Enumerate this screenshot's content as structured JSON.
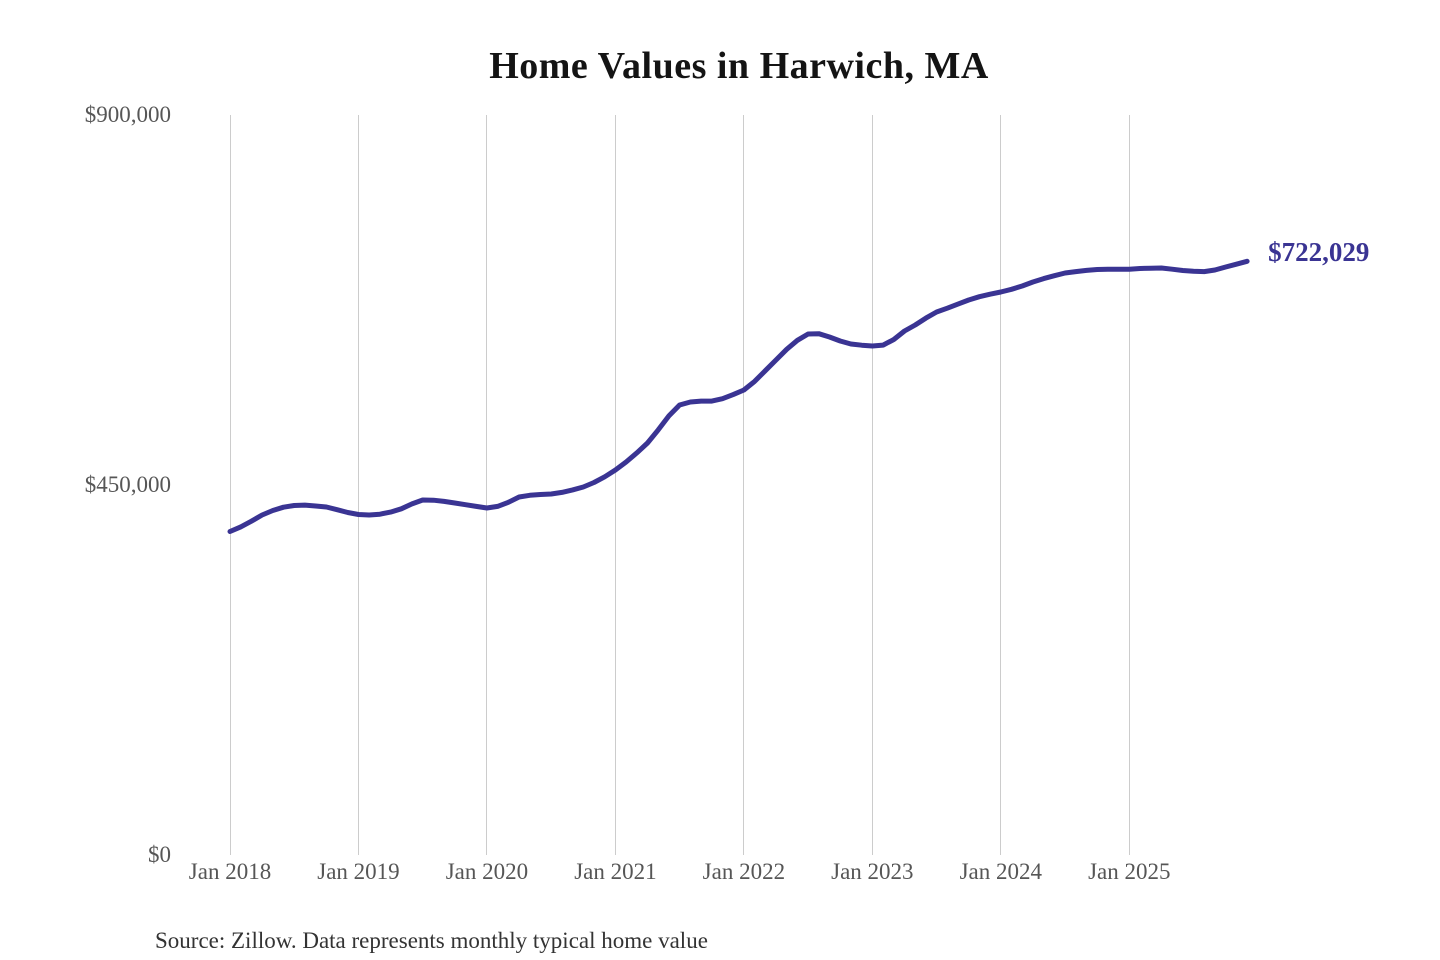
{
  "header": {
    "title": "Home Values in Harwich, MA"
  },
  "footer": {
    "source_note": "Source: Zillow. Data represents monthly typical home value"
  },
  "chart_data": {
    "type": "line",
    "title": "Home Values in Harwich, MA",
    "xlabel": "",
    "ylabel": "",
    "ylim": [
      0,
      900000
    ],
    "grid": "vertical-only",
    "legend_position": "none",
    "x_tick_labels": [
      "Jan 2018",
      "Jan 2019",
      "Jan 2020",
      "Jan 2021",
      "Jan 2022",
      "Jan 2023",
      "Jan 2024",
      "Jan 2025"
    ],
    "y_ticks": [
      {
        "label": "$900,000",
        "value": 900000
      },
      {
        "label": "$450,000",
        "value": 450000
      },
      {
        "label": "$0",
        "value": 0
      }
    ],
    "end_label": "$722,029",
    "end_value": 722029,
    "series": [
      {
        "name": "Monthly typical home value",
        "start": "Jan 2018",
        "end": "Dec 2025",
        "frequency": "monthly",
        "values": [
          393400,
          399000,
          406000,
          413500,
          419000,
          423000,
          425100,
          425500,
          424500,
          423200,
          420000,
          416500,
          414100,
          413500,
          414500,
          417100,
          421000,
          427000,
          431800,
          431500,
          430000,
          428100,
          426000,
          424000,
          422000,
          424000,
          429000,
          435400,
          437500,
          438500,
          439000,
          441000,
          444000,
          447600,
          453000,
          460000,
          468200,
          478000,
          489000,
          501100,
          517000,
          534000,
          547300,
          551000,
          552000,
          552100,
          555000,
          560000,
          565500,
          576000,
          589000,
          602000,
          615000,
          626000,
          633600,
          634000,
          630000,
          625100,
          621500,
          620000,
          619000,
          620200,
          627000,
          637300,
          644600,
          653000,
          660400,
          665000,
          670000,
          675000,
          679000,
          682000,
          684700,
          688000,
          692000,
          696900,
          701000,
          704500,
          707800,
          709500,
          711000,
          712100,
          712500,
          712400,
          712300,
          713300,
          713700,
          713900,
          712500,
          710900,
          710000,
          709600,
          711500,
          715100,
          718500,
          722029
        ]
      }
    ],
    "colors": {
      "line": "#3a3493",
      "grid": "#cccccc",
      "title": "#141414",
      "tick_text": "#565656",
      "source_text": "#333333",
      "end_label": "#3a3493",
      "background": "#ffffff"
    }
  }
}
